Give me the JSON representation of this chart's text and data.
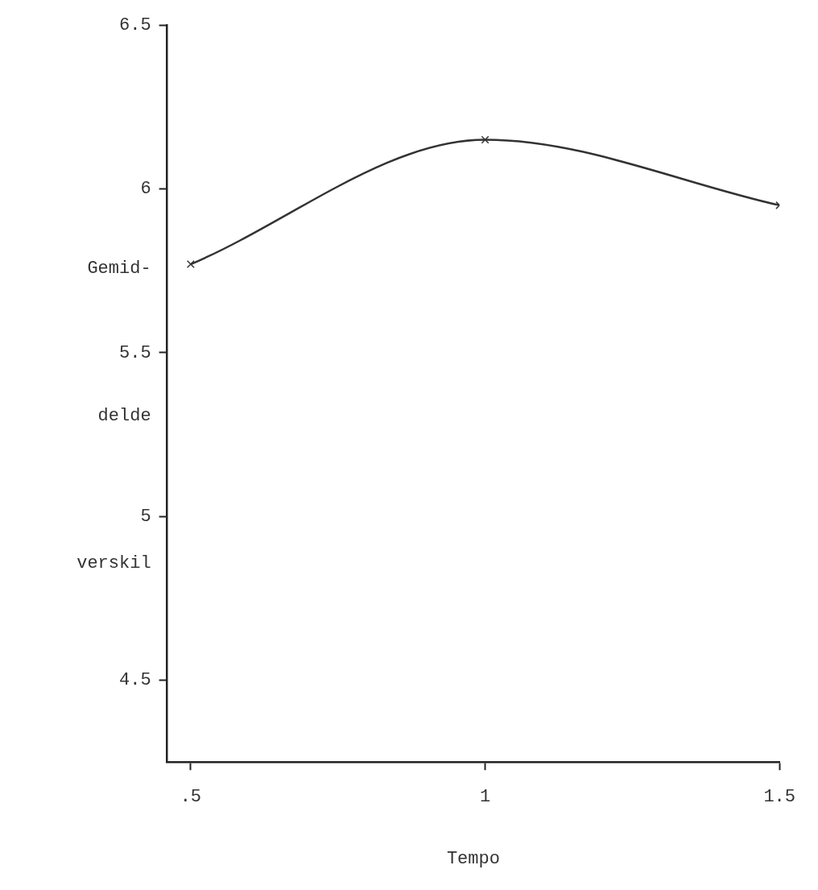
{
  "chart_data": {
    "type": "line",
    "xlabel": "Tempo",
    "ylabel": "Gemid- delde verskil",
    "x": [
      0.5,
      1,
      1.5
    ],
    "series": [
      {
        "color": "#333333",
        "values": [
          5.77,
          6.15,
          5.95
        ]
      }
    ],
    "xlim": [
      0.46,
      1.5
    ],
    "xticks": [
      {
        "value": 0.5,
        "label": ".5"
      },
      1,
      1.5
    ],
    "ylim": [
      4.25,
      6.5
    ],
    "yticks": [
      4.5,
      5,
      5.5,
      6,
      6.5
    ],
    "grid": false,
    "legend": false,
    "marker": "cross",
    "line_style": "solid"
  }
}
